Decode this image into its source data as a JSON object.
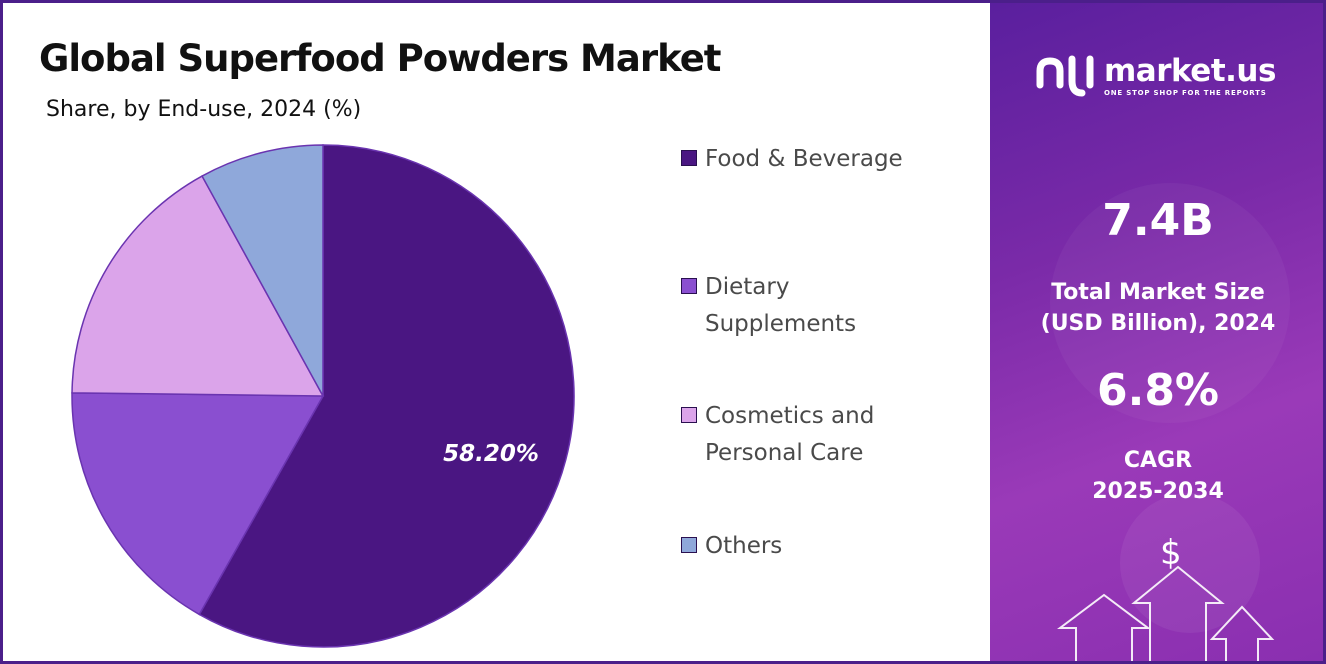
{
  "title": "Global Superfood Powders Market",
  "subtitle": "Share, by End-use, 2024 (%)",
  "chart_data": {
    "type": "pie",
    "title": "Global Superfood Powders Market",
    "subtitle": "Share, by End-use, 2024 (%)",
    "categories": [
      "Food & Beverage",
      "Dietary Supplements",
      "Cosmetics and Personal Care",
      "Others"
    ],
    "values": [
      58.2,
      17.0,
      16.8,
      8.0
    ],
    "colors": [
      "#4a1682",
      "#8a4fd0",
      "#dba4ea",
      "#8fa8da"
    ],
    "labeled_value": "58.20%",
    "legend_position": "right"
  },
  "legend": [
    {
      "label_lines": [
        "Food & Beverage"
      ],
      "color": "#4a1682"
    },
    {
      "label_lines": [
        "Dietary",
        "Supplements"
      ],
      "color": "#8a4fd0"
    },
    {
      "label_lines": [
        "Cosmetics and",
        "Personal Care"
      ],
      "color": "#dba4ea"
    },
    {
      "label_lines": [
        "Others"
      ],
      "color": "#8fa8da"
    }
  ],
  "sidebar": {
    "brand_name": "market.us",
    "brand_tagline": "ONE STOP SHOP FOR THE REPORTS",
    "market_size_value": "7.4B",
    "market_size_label_line1": "Total Market Size",
    "market_size_label_line2": "(USD Billion), 2024",
    "cagr_value": "6.8%",
    "cagr_label_line1": "CAGR",
    "cagr_label_line2": "2025-2034",
    "currency_symbol": "$",
    "icon_logo": "market-us-logo-icon",
    "icon_arrows": "growth-arrows-icon"
  }
}
